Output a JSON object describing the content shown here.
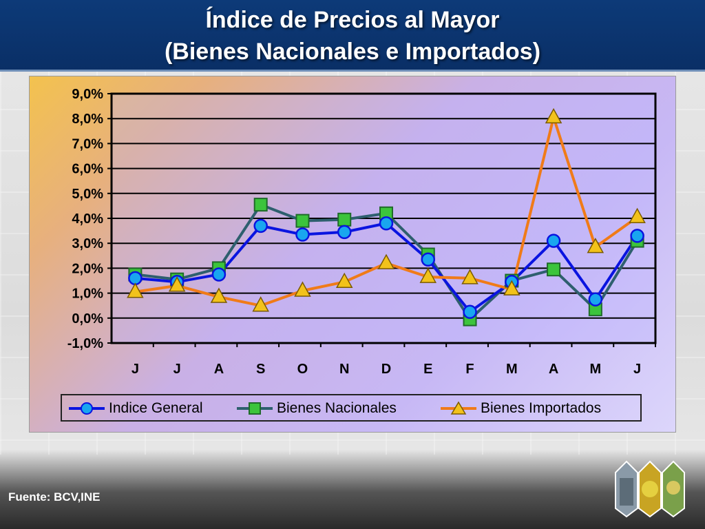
{
  "title": {
    "line1": "Índice de Precios al Mayor",
    "line2": "(Bienes Nacionales e Importados)"
  },
  "source": "Fuente: BCV,INE",
  "chart_data": {
    "type": "line",
    "categories": [
      "J",
      "J",
      "A",
      "S",
      "O",
      "N",
      "D",
      "E",
      "F",
      "M",
      "A",
      "M",
      "J"
    ],
    "y_ticks": [
      "-1,0%",
      "0,0%",
      "1,0%",
      "2,0%",
      "3,0%",
      "4,0%",
      "5,0%",
      "6,0%",
      "7,0%",
      "8,0%",
      "9,0%"
    ],
    "ylim": [
      -1,
      9
    ],
    "grid": true,
    "legend_position": "bottom",
    "series": [
      {
        "name": "Indice General",
        "color": "#0a14e0",
        "marker": "circle",
        "values": [
          1.6,
          1.45,
          1.75,
          3.7,
          3.35,
          3.45,
          3.8,
          2.35,
          0.25,
          1.45,
          3.1,
          0.75,
          3.3
        ]
      },
      {
        "name": "Bienes Nacionales",
        "color": "#2e5f6e",
        "marker": "square",
        "values": [
          1.75,
          1.55,
          2.0,
          4.55,
          3.9,
          3.95,
          4.2,
          2.55,
          -0.05,
          1.5,
          1.95,
          0.35,
          3.1
        ]
      },
      {
        "name": "Bienes Importados",
        "color": "#f07b18",
        "marker": "triangle",
        "values": [
          1.05,
          1.3,
          0.85,
          0.5,
          1.1,
          1.45,
          2.2,
          1.65,
          1.6,
          1.15,
          8.05,
          2.85,
          4.05
        ]
      }
    ]
  }
}
